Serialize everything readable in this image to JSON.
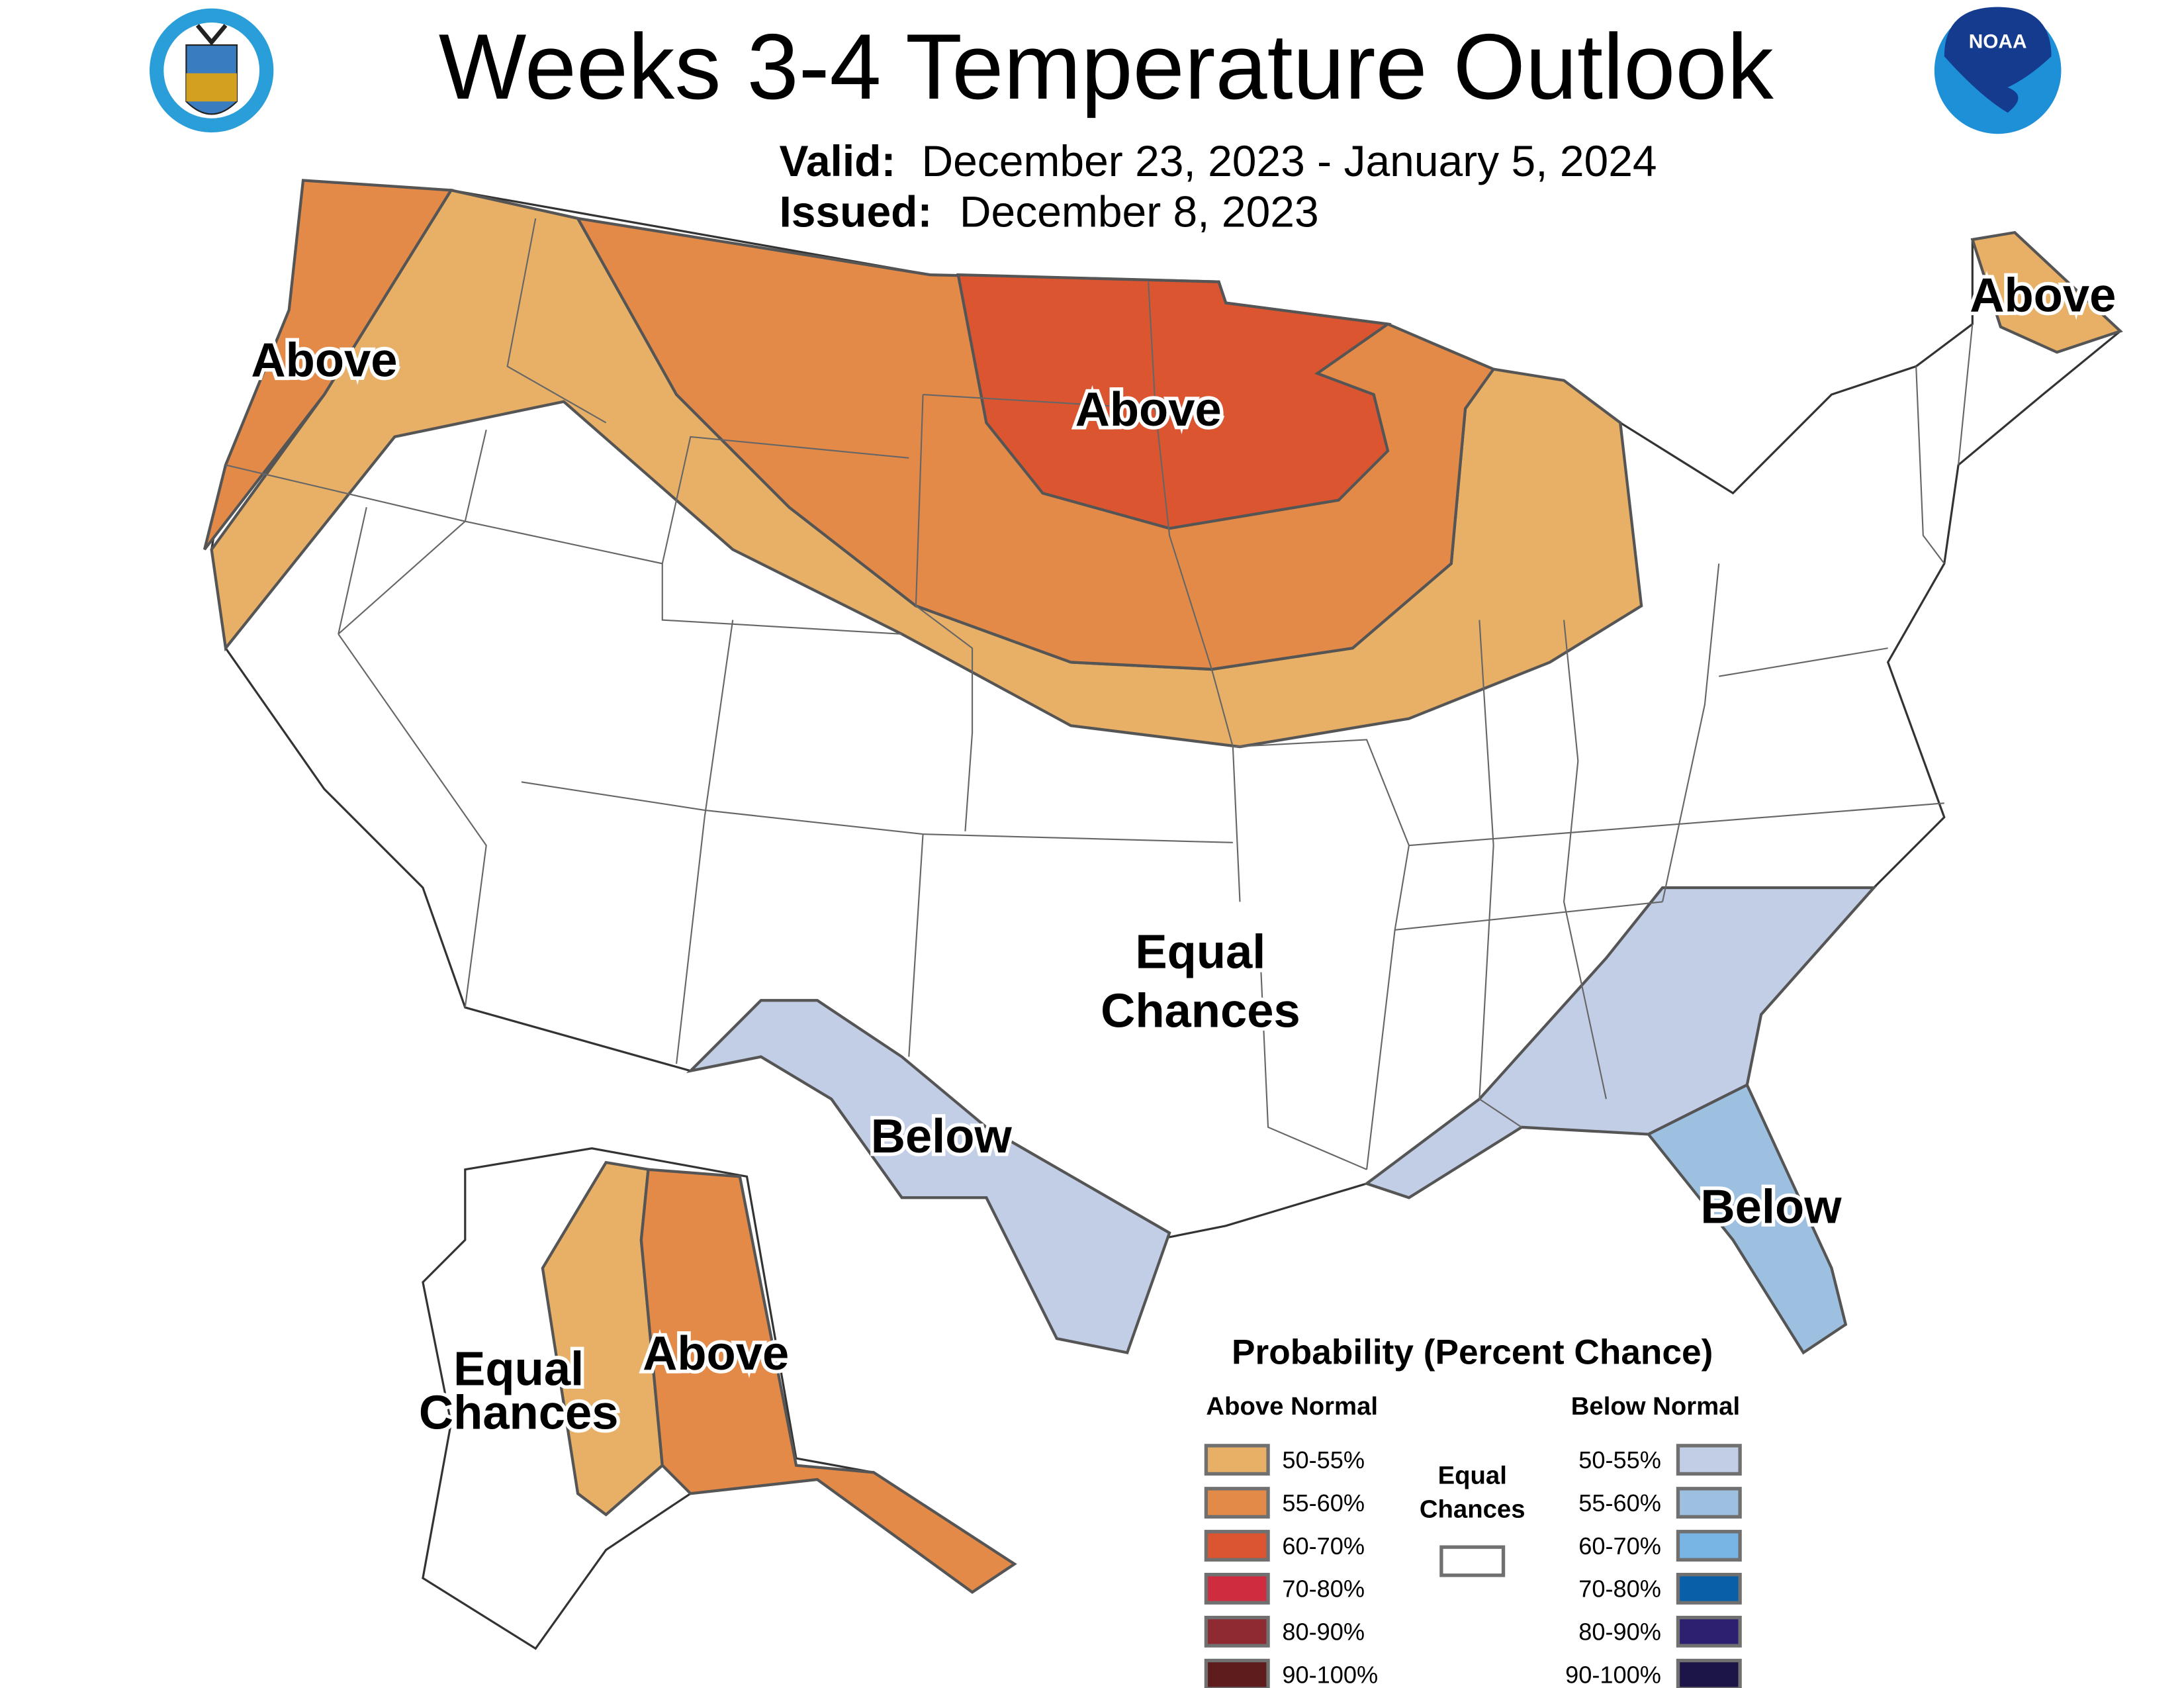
{
  "header": {
    "title": "Weeks 3-4 Temperature Outlook",
    "valid_label": "Valid:",
    "valid_range": "December 23, 2023 - January 5, 2024",
    "issued_label": "Issued:",
    "issued_date": "December 8, 2023"
  },
  "logos": {
    "left": "Department of Commerce, United States of America",
    "right": "NOAA"
  },
  "map_labels": {
    "pacific_nw": "Above",
    "north_central": "Above",
    "maine": "Above",
    "equal_line1": "Equal",
    "equal_line2": "Chances",
    "texas": "Below",
    "florida": "Below",
    "alaska_equal_line1": "Equal",
    "alaska_equal_line2": "Chances",
    "alaska_above": "Above"
  },
  "colors": {
    "above_50_55": "#E8B066",
    "above_55_60": "#E48A48",
    "above_60_70": "#DA5530",
    "below_50_55": "#C2CDE6",
    "below_55_60": "#9EC0E0",
    "equal_chances": "#FFFFFF"
  },
  "legend": {
    "title": "Probability (Percent Chance)",
    "above_header": "Above Normal",
    "below_header": "Below Normal",
    "equal_line1": "Equal",
    "equal_line2": "Chances",
    "above": [
      {
        "label": "50-55%",
        "color": "#E8B066"
      },
      {
        "label": "55-60%",
        "color": "#E48A48"
      },
      {
        "label": "60-70%",
        "color": "#DA5530"
      },
      {
        "label": "70-80%",
        "color": "#D02C40"
      },
      {
        "label": "80-90%",
        "color": "#8E2A32"
      },
      {
        "label": "90-100%",
        "color": "#5E1C1C"
      }
    ],
    "below": [
      {
        "label": "50-55%",
        "color": "#C2CDE6"
      },
      {
        "label": "55-60%",
        "color": "#9EC0E0"
      },
      {
        "label": "60-70%",
        "color": "#78B4E4"
      },
      {
        "label": "70-80%",
        "color": "#0860A8"
      },
      {
        "label": "80-90%",
        "color": "#2E2070"
      },
      {
        "label": "90-100%",
        "color": "#1C1648"
      }
    ]
  }
}
